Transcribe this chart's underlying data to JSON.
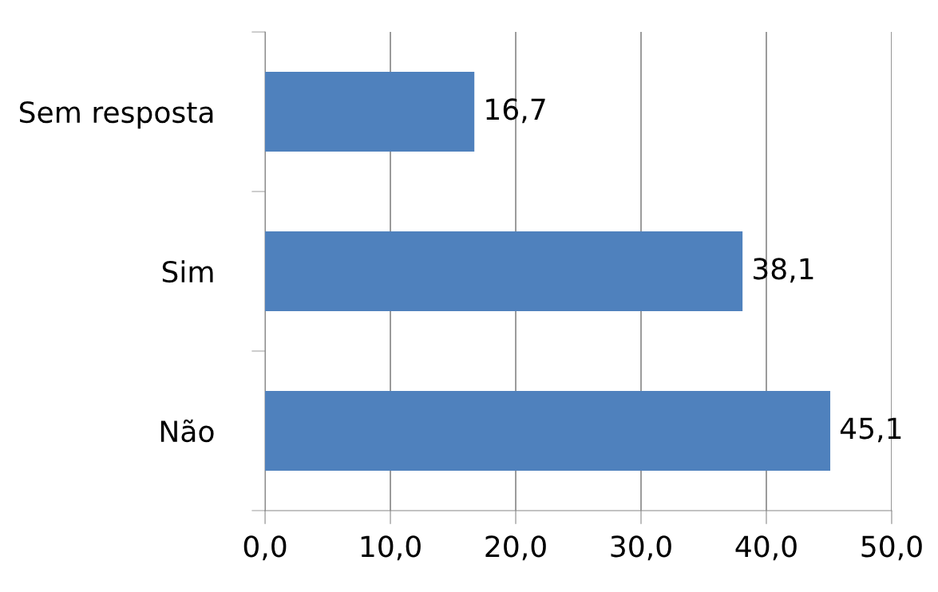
{
  "chart_data": {
    "type": "bar",
    "orientation": "horizontal",
    "categories": [
      "Sem resposta",
      "Sim",
      "Não"
    ],
    "values": [
      16.7,
      38.1,
      45.1
    ],
    "value_labels": [
      "16,7",
      "38,1",
      "45,1"
    ],
    "color": "#4f81bd",
    "xlim": [
      0,
      50
    ],
    "xticks": [
      {
        "value": 0,
        "label": "0,0"
      },
      {
        "value": 10,
        "label": "10,0"
      },
      {
        "value": 20,
        "label": "20,0"
      },
      {
        "value": 30,
        "label": "30,0"
      },
      {
        "value": 40,
        "label": "40,0"
      },
      {
        "value": 50,
        "label": "50,0"
      }
    ],
    "grid": "x",
    "legend": false
  }
}
